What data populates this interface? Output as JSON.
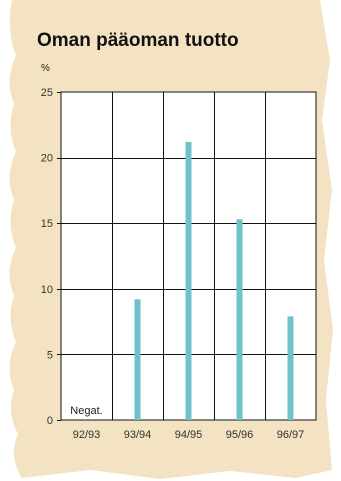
{
  "chart_data": {
    "type": "bar",
    "title": "Oman pääoman tuotto",
    "unit_label": "%",
    "categories": [
      "92/93",
      "93/94",
      "94/95",
      "95/96",
      "96/97"
    ],
    "values": [
      null,
      9.2,
      21.2,
      15.3,
      7.9
    ],
    "ylim": [
      0,
      25
    ],
    "yticks": [
      0,
      5,
      10,
      15,
      20,
      25
    ],
    "annotations": [
      {
        "category": "92/93",
        "text": "Negat."
      }
    ],
    "grid": true,
    "colors": {
      "bar": "#6fc2c8",
      "panel": "#f4e3c2",
      "plot_bg": "#ffffff"
    }
  }
}
